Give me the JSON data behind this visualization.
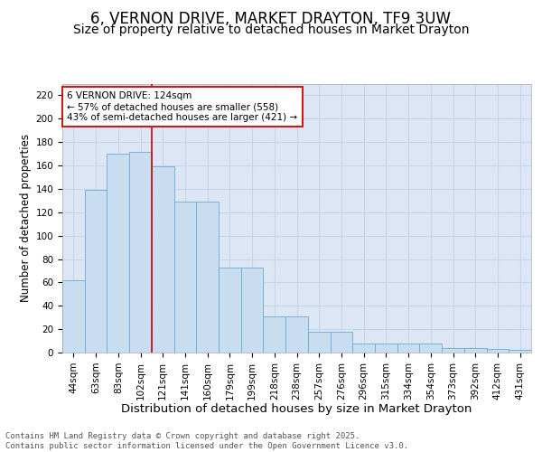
{
  "title": "6, VERNON DRIVE, MARKET DRAYTON, TF9 3UW",
  "subtitle": "Size of property relative to detached houses in Market Drayton",
  "xlabel": "Distribution of detached houses by size in Market Drayton",
  "ylabel": "Number of detached properties",
  "categories": [
    "44sqm",
    "63sqm",
    "83sqm",
    "102sqm",
    "121sqm",
    "141sqm",
    "160sqm",
    "179sqm",
    "199sqm",
    "218sqm",
    "238sqm",
    "257sqm",
    "276sqm",
    "296sqm",
    "315sqm",
    "334sqm",
    "354sqm",
    "373sqm",
    "392sqm",
    "412sqm",
    "431sqm"
  ],
  "bar_heights": [
    62,
    139,
    170,
    172,
    159,
    129,
    129,
    73,
    73,
    31,
    31,
    18,
    18,
    8,
    8,
    8,
    8,
    4,
    4,
    3,
    2
  ],
  "bar_color": "#c9ddf0",
  "bar_edge_color": "#6aaad4",
  "grid_color": "#c8d4e8",
  "background_color": "#dce6f5",
  "vline_x_index": 4,
  "vline_color": "#cc0000",
  "annotation_text": "6 VERNON DRIVE: 124sqm\n← 57% of detached houses are smaller (558)\n43% of semi-detached houses are larger (421) →",
  "annotation_box_color": "#ffffff",
  "annotation_border_color": "#cc0000",
  "ylim": [
    0,
    230
  ],
  "yticks": [
    0,
    20,
    40,
    60,
    80,
    100,
    120,
    140,
    160,
    180,
    200,
    220
  ],
  "footer": "Contains HM Land Registry data © Crown copyright and database right 2025.\nContains public sector information licensed under the Open Government Licence v3.0.",
  "title_fontsize": 12,
  "subtitle_fontsize": 10,
  "xlabel_fontsize": 9.5,
  "ylabel_fontsize": 8.5,
  "tick_fontsize": 7.5,
  "annotation_fontsize": 7.5,
  "footer_fontsize": 6.5
}
